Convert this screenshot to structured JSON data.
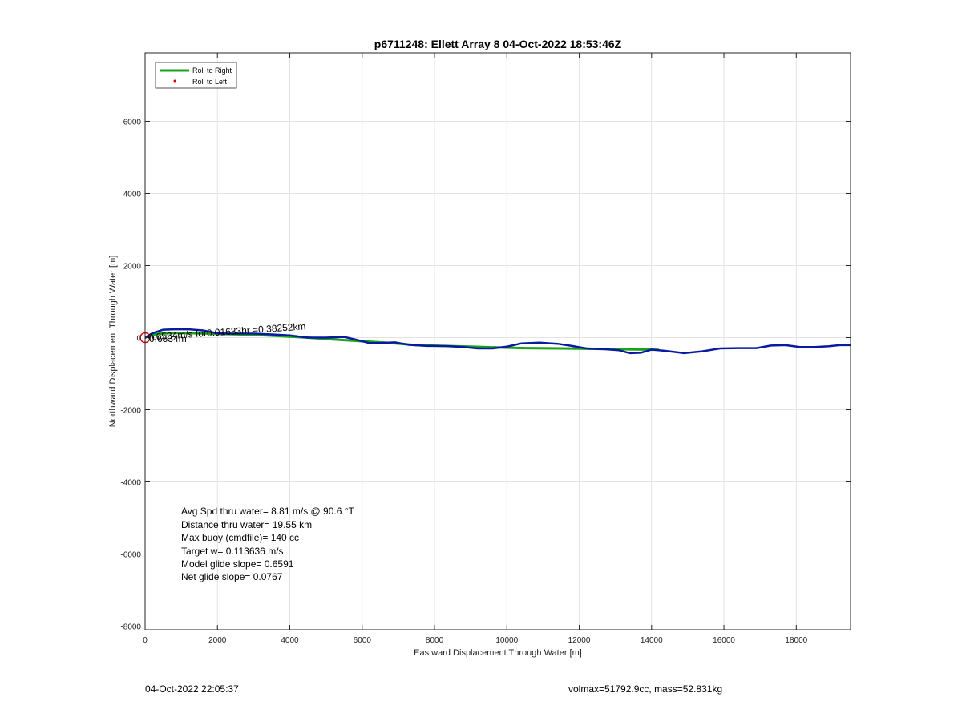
{
  "chart_data": {
    "type": "line",
    "title": "p6711248: Ellett Array 8 04-Oct-2022 18:53:46Z",
    "xlabel": "Eastward Displacement Through Water [m]",
    "ylabel": "Northward Displacement Through Water [m]",
    "xlim": [
      0,
      19500
    ],
    "ylim": [
      -8100,
      7900
    ],
    "xticks": [
      0,
      2000,
      4000,
      6000,
      8000,
      10000,
      12000,
      14000,
      16000,
      18000
    ],
    "yticks": [
      -8000,
      -6000,
      -4000,
      -2000,
      0,
      2000,
      4000,
      6000
    ],
    "xtick_labels": [
      "0",
      "2000",
      "4000",
      "6000",
      "8000",
      "10000",
      "12000",
      "14000",
      "16000",
      "18000"
    ],
    "ytick_labels": [
      "-8000",
      "-6000",
      "-4000",
      "-2000",
      "0",
      "2000",
      "4000",
      "6000"
    ],
    "grid": true,
    "legend": {
      "placement": "top-left",
      "entries": [
        {
          "label": "Roll to Right",
          "color": "#1aa31a",
          "style": "line"
        },
        {
          "label": "Roll to Left",
          "color": "#e00000",
          "style": "dot"
        }
      ]
    },
    "series": [
      {
        "color": "#1aa31a",
        "x": [
          0,
          300,
          800,
          1500,
          2200,
          3000,
          3800,
          4500,
          5200,
          6000,
          6800,
          7500,
          8200,
          9000,
          9600,
          10500,
          11500,
          12200,
          13000,
          13800,
          14200
        ],
        "y": [
          0,
          100,
          130,
          120,
          100,
          80,
          40,
          0,
          -50,
          -100,
          -150,
          -210,
          -230,
          -250,
          -270,
          -290,
          -300,
          -310,
          -320,
          -330,
          -340
        ]
      },
      {
        "color": "#0a1aa0",
        "x": [
          0,
          200,
          500,
          800,
          1200,
          1600,
          2000,
          2400,
          3000,
          3500,
          4000,
          4500,
          5000,
          5500,
          5800,
          6200,
          6500,
          6900,
          7300,
          7800,
          8300,
          8800,
          9200,
          9600,
          10000,
          10400,
          10900,
          11400,
          11800,
          12200,
          12700,
          13100,
          13400,
          13700,
          14000,
          14400,
          14900,
          15400,
          15900,
          16400,
          16900,
          17300,
          17700,
          18100,
          18500,
          18900,
          19200,
          19500
        ],
        "y": [
          0,
          120,
          220,
          230,
          230,
          200,
          120,
          110,
          110,
          90,
          60,
          0,
          0,
          20,
          -50,
          -150,
          -150,
          -130,
          -200,
          -230,
          -230,
          -260,
          -300,
          -300,
          -250,
          -160,
          -140,
          -170,
          -230,
          -300,
          -320,
          -350,
          -430,
          -420,
          -330,
          -370,
          -430,
          -380,
          -300,
          -290,
          -290,
          -220,
          -210,
          -260,
          -260,
          -240,
          -210,
          -210
        ]
      }
    ],
    "annotations": [
      "Avg Spd thru water=  8.81 m/s @  90.6 °T",
      "Distance thru water= 19.55 km",
      "Max buoy (cmdfile)= 140 cc",
      "Target w= 0.113636 m/s",
      "Model glide slope= 0.6591",
      "Net glide slope= 0.0767"
    ],
    "point_labels": [
      "0.6534m/s for0.01633hr =0.38252km",
      "0.6534m"
    ]
  },
  "footer": {
    "left": "04-Oct-2022 22:05:37",
    "right": "volmax=51792.9cc, mass=52.831kg"
  }
}
